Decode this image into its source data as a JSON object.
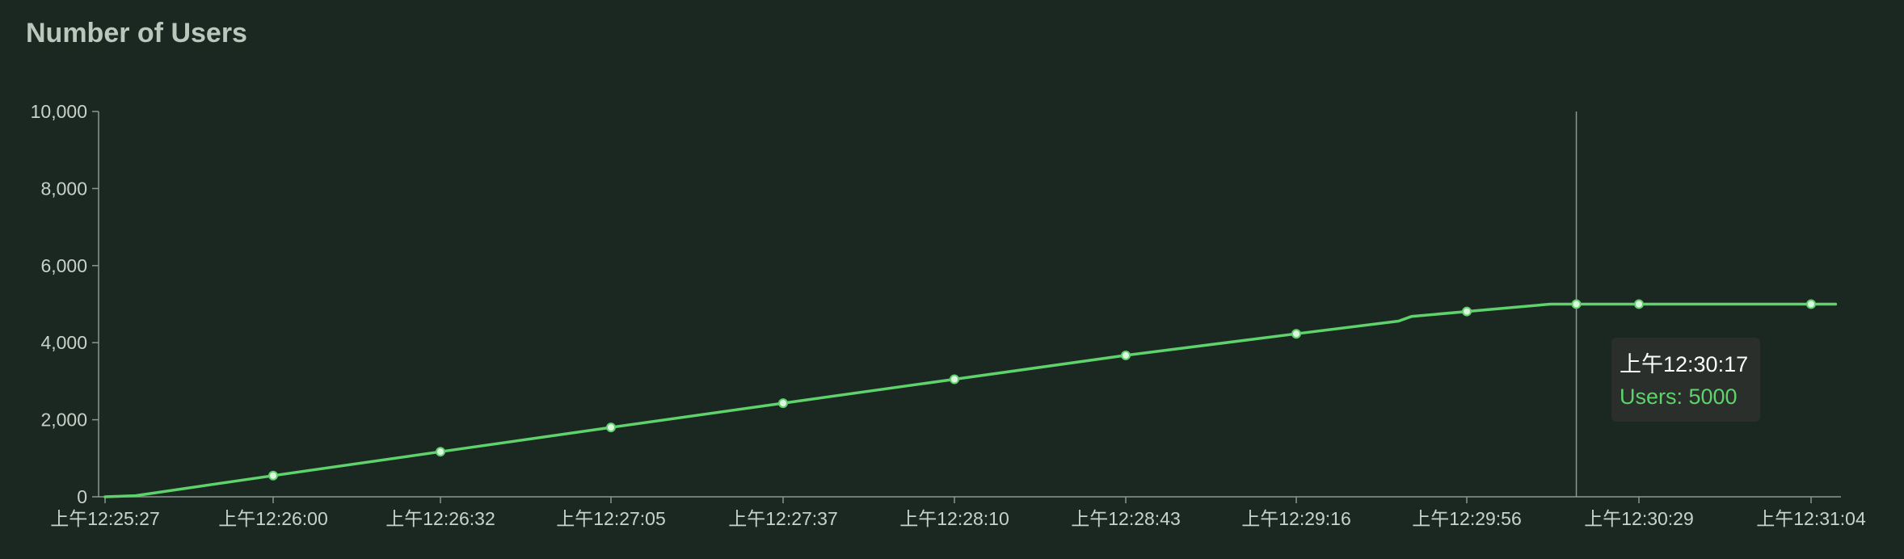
{
  "title": "Number of Users",
  "chart_data": {
    "type": "line",
    "title": "Number of Users",
    "xlabel": "",
    "ylabel": "",
    "ylim": [
      0,
      10000
    ],
    "yticks": [
      0,
      2000,
      4000,
      6000,
      8000,
      10000
    ],
    "ytick_labels": [
      "0",
      "2,000",
      "4,000",
      "6,000",
      "8,000",
      "10,000"
    ],
    "xticks": [
      "上午12:25:27",
      "上午12:26:00",
      "上午12:26:32",
      "上午12:27:05",
      "上午12:27:37",
      "上午12:28:10",
      "上午12:28:43",
      "上午12:29:16",
      "上午12:29:56",
      "上午12:30:29",
      "上午12:31:04"
    ],
    "grid": false,
    "line_color": "#5ed36b",
    "series": [
      {
        "points": [
          {
            "x": "上午12:25:27",
            "y": 0
          },
          {
            "x": "上午12:25:33",
            "y": 30
          },
          {
            "x": "上午12:26:00",
            "y": 550
          },
          {
            "x": "上午12:26:32",
            "y": 1170
          },
          {
            "x": "上午12:27:05",
            "y": 1800
          },
          {
            "x": "上午12:27:37",
            "y": 2430
          },
          {
            "x": "上午12:28:10",
            "y": 3050
          },
          {
            "x": "上午12:28:43",
            "y": 3670
          },
          {
            "x": "上午12:29:16",
            "y": 4230
          },
          {
            "x": "上午12:29:40",
            "y": 4560
          },
          {
            "x": "上午12:29:43",
            "y": 4680
          },
          {
            "x": "上午12:29:56",
            "y": 4810
          },
          {
            "x": "上午12:30:12",
            "y": 5000
          },
          {
            "x": "上午12:30:17",
            "y": 5000
          },
          {
            "x": "上午12:30:29",
            "y": 5000
          },
          {
            "x": "上午12:31:04",
            "y": 5000
          },
          {
            "x": "上午12:31:09",
            "y": 5000
          }
        ],
        "markers": [
          "上午12:26:00",
          "上午12:26:32",
          "上午12:27:05",
          "上午12:27:37",
          "上午12:28:10",
          "上午12:28:43",
          "上午12:29:16",
          "上午12:29:56",
          "上午12:30:17",
          "上午12:30:29",
          "上午12:31:04"
        ]
      }
    ],
    "hover": {
      "x": "上午12:30:17",
      "time_label": "上午12:30:17",
      "value_label": "Users: 5000"
    }
  }
}
